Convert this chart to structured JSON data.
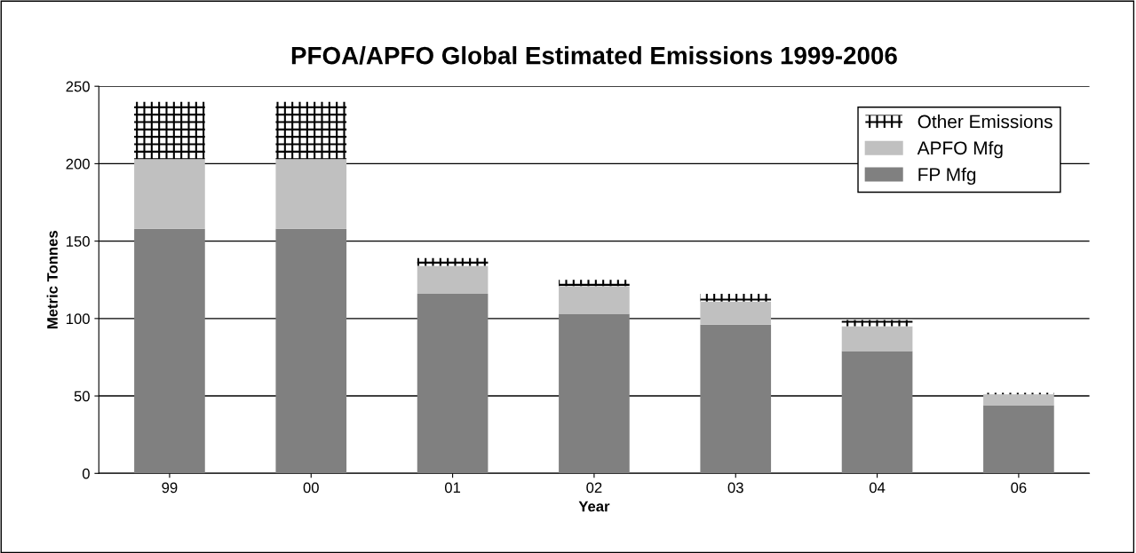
{
  "chart_data": {
    "type": "bar",
    "title": "PFOA/APFO Global Estimated Emissions 1999-2006",
    "xlabel": "Year",
    "ylabel": "Metric Tonnes",
    "categories": [
      "99",
      "00",
      "01",
      "02",
      "03",
      "04",
      "06"
    ],
    "stacked": true,
    "series": [
      {
        "name": "FP Mfg",
        "color": "#808080",
        "values": [
          158,
          158,
          116,
          103,
          96,
          79,
          44
        ]
      },
      {
        "name": "APFO Mfg",
        "color": "#c0c0c0",
        "values": [
          45,
          45,
          18,
          18,
          15,
          16,
          7
        ]
      },
      {
        "name": "Other Emissions",
        "color": "#000000",
        "values": [
          37,
          37,
          5,
          4,
          5,
          4,
          1
        ]
      }
    ],
    "ylim": [
      0,
      250
    ],
    "yticks": [
      0,
      50,
      100,
      150,
      200,
      250
    ],
    "grid": "y",
    "legend": "top right"
  }
}
